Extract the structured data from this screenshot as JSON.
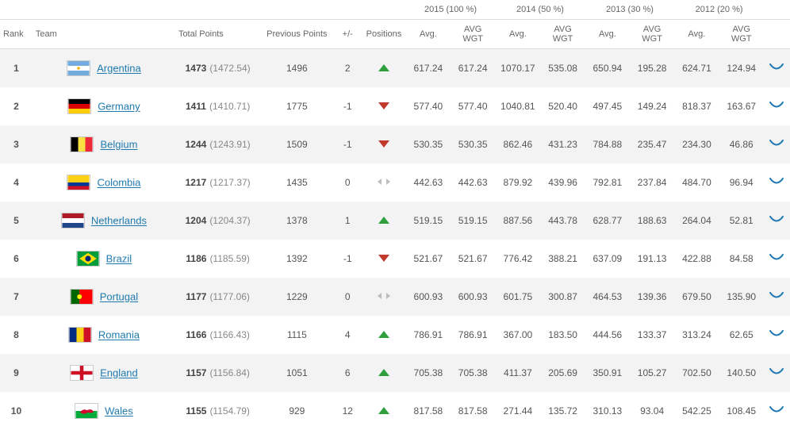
{
  "headers": {
    "rank": "Rank",
    "team": "Team",
    "total_points": "Total Points",
    "previous_points": "Previous Points",
    "plusminus": "+/-",
    "positions": "Positions",
    "avg": "Avg.",
    "avg_wgt": "AVG WGT"
  },
  "year_groups": [
    {
      "label": "2015 (100 %)"
    },
    {
      "label": "2014 (50 %)"
    },
    {
      "label": "2013 (30 %)"
    },
    {
      "label": "2012 (20 %)"
    }
  ],
  "colors": {
    "link": "#1f7aaf",
    "row_alt": "#f3f3f3",
    "arrow_up": "#2e9e3f",
    "arrow_down": "#c0392b",
    "arrow_same": "#bdbdbd",
    "chevron": "#1f7aaf"
  },
  "rows": [
    {
      "rank": "1",
      "team": "Argentina",
      "flag": "argentina",
      "total_bold": "1473",
      "total_detail": "(1472.54)",
      "previous": "1496",
      "plusminus": "2",
      "direction": "up",
      "y2015_avg": "617.24",
      "y2015_wgt": "617.24",
      "y2014_avg": "1070.17",
      "y2014_wgt": "535.08",
      "y2013_avg": "650.94",
      "y2013_wgt": "195.28",
      "y2012_avg": "624.71",
      "y2012_wgt": "124.94"
    },
    {
      "rank": "2",
      "team": "Germany",
      "flag": "germany",
      "total_bold": "1411",
      "total_detail": "(1410.71)",
      "previous": "1775",
      "plusminus": "-1",
      "direction": "down",
      "y2015_avg": "577.40",
      "y2015_wgt": "577.40",
      "y2014_avg": "1040.81",
      "y2014_wgt": "520.40",
      "y2013_avg": "497.45",
      "y2013_wgt": "149.24",
      "y2012_avg": "818.37",
      "y2012_wgt": "163.67"
    },
    {
      "rank": "3",
      "team": "Belgium",
      "flag": "belgium",
      "total_bold": "1244",
      "total_detail": "(1243.91)",
      "previous": "1509",
      "plusminus": "-1",
      "direction": "down",
      "y2015_avg": "530.35",
      "y2015_wgt": "530.35",
      "y2014_avg": "862.46",
      "y2014_wgt": "431.23",
      "y2013_avg": "784.88",
      "y2013_wgt": "235.47",
      "y2012_avg": "234.30",
      "y2012_wgt": "46.86"
    },
    {
      "rank": "4",
      "team": "Colombia",
      "flag": "colombia",
      "total_bold": "1217",
      "total_detail": "(1217.37)",
      "previous": "1435",
      "plusminus": "0",
      "direction": "same",
      "y2015_avg": "442.63",
      "y2015_wgt": "442.63",
      "y2014_avg": "879.92",
      "y2014_wgt": "439.96",
      "y2013_avg": "792.81",
      "y2013_wgt": "237.84",
      "y2012_avg": "484.70",
      "y2012_wgt": "96.94"
    },
    {
      "rank": "5",
      "team": "Netherlands",
      "flag": "netherlands",
      "total_bold": "1204",
      "total_detail": "(1204.37)",
      "previous": "1378",
      "plusminus": "1",
      "direction": "up",
      "y2015_avg": "519.15",
      "y2015_wgt": "519.15",
      "y2014_avg": "887.56",
      "y2014_wgt": "443.78",
      "y2013_avg": "628.77",
      "y2013_wgt": "188.63",
      "y2012_avg": "264.04",
      "y2012_wgt": "52.81"
    },
    {
      "rank": "6",
      "team": "Brazil",
      "flag": "brazil",
      "total_bold": "1186",
      "total_detail": "(1185.59)",
      "previous": "1392",
      "plusminus": "-1",
      "direction": "down",
      "y2015_avg": "521.67",
      "y2015_wgt": "521.67",
      "y2014_avg": "776.42",
      "y2014_wgt": "388.21",
      "y2013_avg": "637.09",
      "y2013_wgt": "191.13",
      "y2012_avg": "422.88",
      "y2012_wgt": "84.58"
    },
    {
      "rank": "7",
      "team": "Portugal",
      "flag": "portugal",
      "total_bold": "1177",
      "total_detail": "(1177.06)",
      "previous": "1229",
      "plusminus": "0",
      "direction": "same",
      "y2015_avg": "600.93",
      "y2015_wgt": "600.93",
      "y2014_avg": "601.75",
      "y2014_wgt": "300.87",
      "y2013_avg": "464.53",
      "y2013_wgt": "139.36",
      "y2012_avg": "679.50",
      "y2012_wgt": "135.90"
    },
    {
      "rank": "8",
      "team": "Romania",
      "flag": "romania",
      "total_bold": "1166",
      "total_detail": "(1166.43)",
      "previous": "1115",
      "plusminus": "4",
      "direction": "up",
      "y2015_avg": "786.91",
      "y2015_wgt": "786.91",
      "y2014_avg": "367.00",
      "y2014_wgt": "183.50",
      "y2013_avg": "444.56",
      "y2013_wgt": "133.37",
      "y2012_avg": "313.24",
      "y2012_wgt": "62.65"
    },
    {
      "rank": "9",
      "team": "England",
      "flag": "england",
      "total_bold": "1157",
      "total_detail": "(1156.84)",
      "previous": "1051",
      "plusminus": "6",
      "direction": "up",
      "y2015_avg": "705.38",
      "y2015_wgt": "705.38",
      "y2014_avg": "411.37",
      "y2014_wgt": "205.69",
      "y2013_avg": "350.91",
      "y2013_wgt": "105.27",
      "y2012_avg": "702.50",
      "y2012_wgt": "140.50"
    },
    {
      "rank": "10",
      "team": "Wales",
      "flag": "wales",
      "total_bold": "1155",
      "total_detail": "(1154.79)",
      "previous": "929",
      "plusminus": "12",
      "direction": "up",
      "y2015_avg": "817.58",
      "y2015_wgt": "817.58",
      "y2014_avg": "271.44",
      "y2014_wgt": "135.72",
      "y2013_avg": "310.13",
      "y2013_wgt": "93.04",
      "y2012_avg": "542.25",
      "y2012_wgt": "108.45"
    }
  ]
}
